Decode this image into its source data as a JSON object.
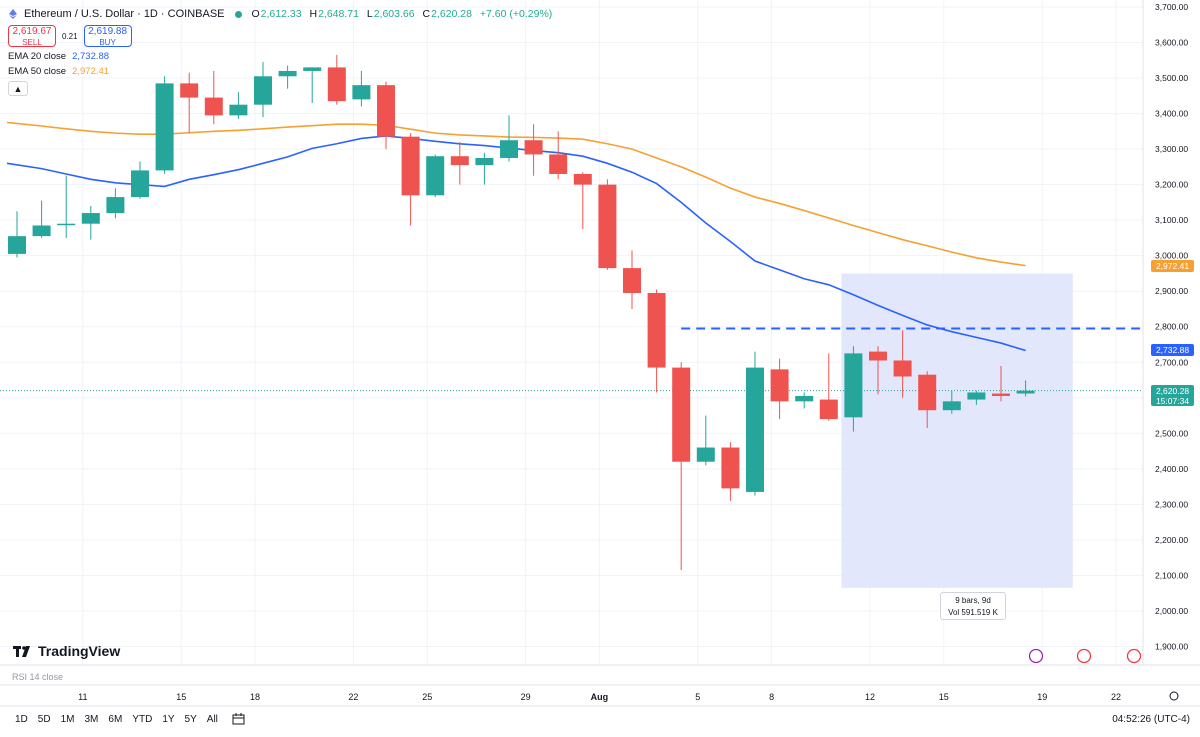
{
  "chart_data": {
    "type": "candlestick",
    "title": "Ethereum / U.S. Dollar · 1D · COINBASE",
    "ylim": [
      1850,
      3720
    ],
    "y_ticks": [
      "1,900.00",
      "2,000.00",
      "2,100.00",
      "2,200.00",
      "2,300.00",
      "2,400.00",
      "2,500.00",
      "2,600.00",
      "2,700.00",
      "2,800.00",
      "2,900.00",
      "3,000.00",
      "3,100.00",
      "3,200.00",
      "3,300.00",
      "3,400.00",
      "3,500.00",
      "3,600.00",
      "3,700.00"
    ],
    "x_ticks": [
      "11",
      "15",
      "18",
      "22",
      "25",
      "29",
      "Aug",
      "5",
      "8",
      "12",
      "15",
      "19",
      "22"
    ],
    "candles": [
      {
        "o": 3005,
        "h": 3125,
        "l": 2995,
        "c": 3055
      },
      {
        "o": 3055,
        "h": 3155,
        "l": 3050,
        "c": 3085
      },
      {
        "o": 3090,
        "h": 3225,
        "l": 3050,
        "c": 3090
      },
      {
        "o": 3090,
        "h": 3140,
        "l": 3045,
        "c": 3120
      },
      {
        "o": 3120,
        "h": 3190,
        "l": 3105,
        "c": 3165
      },
      {
        "o": 3165,
        "h": 3265,
        "l": 3160,
        "c": 3240
      },
      {
        "o": 3240,
        "h": 3505,
        "l": 3230,
        "c": 3485
      },
      {
        "o": 3485,
        "h": 3515,
        "l": 3345,
        "c": 3445
      },
      {
        "o": 3445,
        "h": 3520,
        "l": 3370,
        "c": 3395
      },
      {
        "o": 3395,
        "h": 3460,
        "l": 3385,
        "c": 3425
      },
      {
        "o": 3425,
        "h": 3545,
        "l": 3390,
        "c": 3505
      },
      {
        "o": 3505,
        "h": 3535,
        "l": 3470,
        "c": 3520
      },
      {
        "o": 3520,
        "h": 3530,
        "l": 3430,
        "c": 3530
      },
      {
        "o": 3530,
        "h": 3565,
        "l": 3425,
        "c": 3435
      },
      {
        "o": 3440,
        "h": 3520,
        "l": 3420,
        "c": 3480
      },
      {
        "o": 3480,
        "h": 3490,
        "l": 3300,
        "c": 3335
      },
      {
        "o": 3335,
        "h": 3345,
        "l": 3085,
        "c": 3170
      },
      {
        "o": 3170,
        "h": 3285,
        "l": 3165,
        "c": 3280
      },
      {
        "o": 3280,
        "h": 3320,
        "l": 3200,
        "c": 3255
      },
      {
        "o": 3255,
        "h": 3290,
        "l": 3200,
        "c": 3275
      },
      {
        "o": 3275,
        "h": 3395,
        "l": 3265,
        "c": 3325
      },
      {
        "o": 3325,
        "h": 3370,
        "l": 3225,
        "c": 3285
      },
      {
        "o": 3285,
        "h": 3350,
        "l": 3215,
        "c": 3230
      },
      {
        "o": 3230,
        "h": 3235,
        "l": 3075,
        "c": 3200
      },
      {
        "o": 3200,
        "h": 3215,
        "l": 2960,
        "c": 2965
      },
      {
        "o": 2965,
        "h": 3015,
        "l": 2850,
        "c": 2895
      },
      {
        "o": 2895,
        "h": 2905,
        "l": 2615,
        "c": 2685
      },
      {
        "o": 2685,
        "h": 2700,
        "l": 2115,
        "c": 2420
      },
      {
        "o": 2420,
        "h": 2550,
        "l": 2410,
        "c": 2460
      },
      {
        "o": 2460,
        "h": 2475,
        "l": 2310,
        "c": 2345
      },
      {
        "o": 2335,
        "h": 2730,
        "l": 2325,
        "c": 2685
      },
      {
        "o": 2680,
        "h": 2710,
        "l": 2540,
        "c": 2590
      },
      {
        "o": 2590,
        "h": 2615,
        "l": 2570,
        "c": 2605
      },
      {
        "o": 2595,
        "h": 2725,
        "l": 2535,
        "c": 2540
      },
      {
        "o": 2545,
        "h": 2745,
        "l": 2505,
        "c": 2725
      },
      {
        "o": 2730,
        "h": 2745,
        "l": 2610,
        "c": 2705
      },
      {
        "o": 2705,
        "h": 2790,
        "l": 2600,
        "c": 2660
      },
      {
        "o": 2665,
        "h": 2675,
        "l": 2515,
        "c": 2565
      },
      {
        "o": 2565,
        "h": 2620,
        "l": 2555,
        "c": 2590
      },
      {
        "o": 2595,
        "h": 2620,
        "l": 2580,
        "c": 2615
      },
      {
        "o": 2612,
        "h": 2690,
        "l": 2590,
        "c": 2605
      },
      {
        "o": 2612,
        "h": 2649,
        "l": 2604,
        "c": 2620
      }
    ],
    "series": [
      {
        "name": "EMA 20 close",
        "color": "#2962ff",
        "values": [
          3260,
          3245,
          3230,
          3215,
          3205,
          3200,
          3195,
          3215,
          3228,
          3242,
          3260,
          3278,
          3302,
          3315,
          3330,
          3337,
          3330,
          3322,
          3315,
          3310,
          3303,
          3296,
          3290,
          3280,
          3260,
          3235,
          3203,
          3150,
          3092,
          3040,
          2985,
          2960,
          2935,
          2918,
          2890,
          2860,
          2832,
          2805,
          2786,
          2770,
          2754,
          2733
        ]
      },
      {
        "name": "EMA 50 close",
        "color": "#f7a032",
        "values": [
          3375,
          3365,
          3357,
          3350,
          3345,
          3342,
          3342,
          3346,
          3350,
          3353,
          3357,
          3362,
          3366,
          3370,
          3370,
          3367,
          3356,
          3345,
          3340,
          3337,
          3334,
          3333,
          3331,
          3328,
          3315,
          3300,
          3275,
          3250,
          3221,
          3190,
          3165,
          3147,
          3127,
          3106,
          3085,
          3065,
          3045,
          3028,
          3010,
          2994,
          2982,
          2972
        ]
      }
    ],
    "legend": {
      "symbol": "Ethereum / U.S. Dollar · 1D · COINBASE",
      "ohlc": {
        "O": "2,612.33",
        "H": "2,648.71",
        "L": "2,603.66",
        "C": "2,620.28"
      },
      "change": "+7.60 (+0.29%)",
      "sell_price": "2,619.67",
      "sell_label": "SELL",
      "buy_price": "2,619.88",
      "buy_label": "BUY",
      "spread": "0.21",
      "ema20_label": "EMA 20 close",
      "ema20_value": "2,732.88",
      "ema50_label": "EMA 50 close",
      "ema50_value": "2,972.41"
    },
    "price_tags": {
      "ema50": "2,972.41",
      "ema20": "2,732.88",
      "last": "2,620.28",
      "countdown": "15:07:34"
    },
    "horizontal_line": 2795,
    "range_box": {
      "start_candle": 34,
      "end_candle": 43,
      "top": 2950,
      "bottom": 2065
    },
    "range_info": {
      "line1": "9 bars, 9d",
      "line2": "Vol 591.519 K"
    }
  },
  "branding": {
    "logo_text": "TradingView"
  },
  "indicator_pane": {
    "label": "RSI 14 close"
  },
  "timeframes": [
    "1D",
    "5D",
    "1M",
    "3M",
    "6M",
    "YTD",
    "1Y",
    "5Y",
    "All"
  ],
  "clock": "04:52:26 (UTC-4)",
  "colors": {
    "up": "#26a69a",
    "down": "#ef5350",
    "ema20": "#2962ff",
    "ema50": "#f7a032",
    "range": "#dde3fb"
  }
}
